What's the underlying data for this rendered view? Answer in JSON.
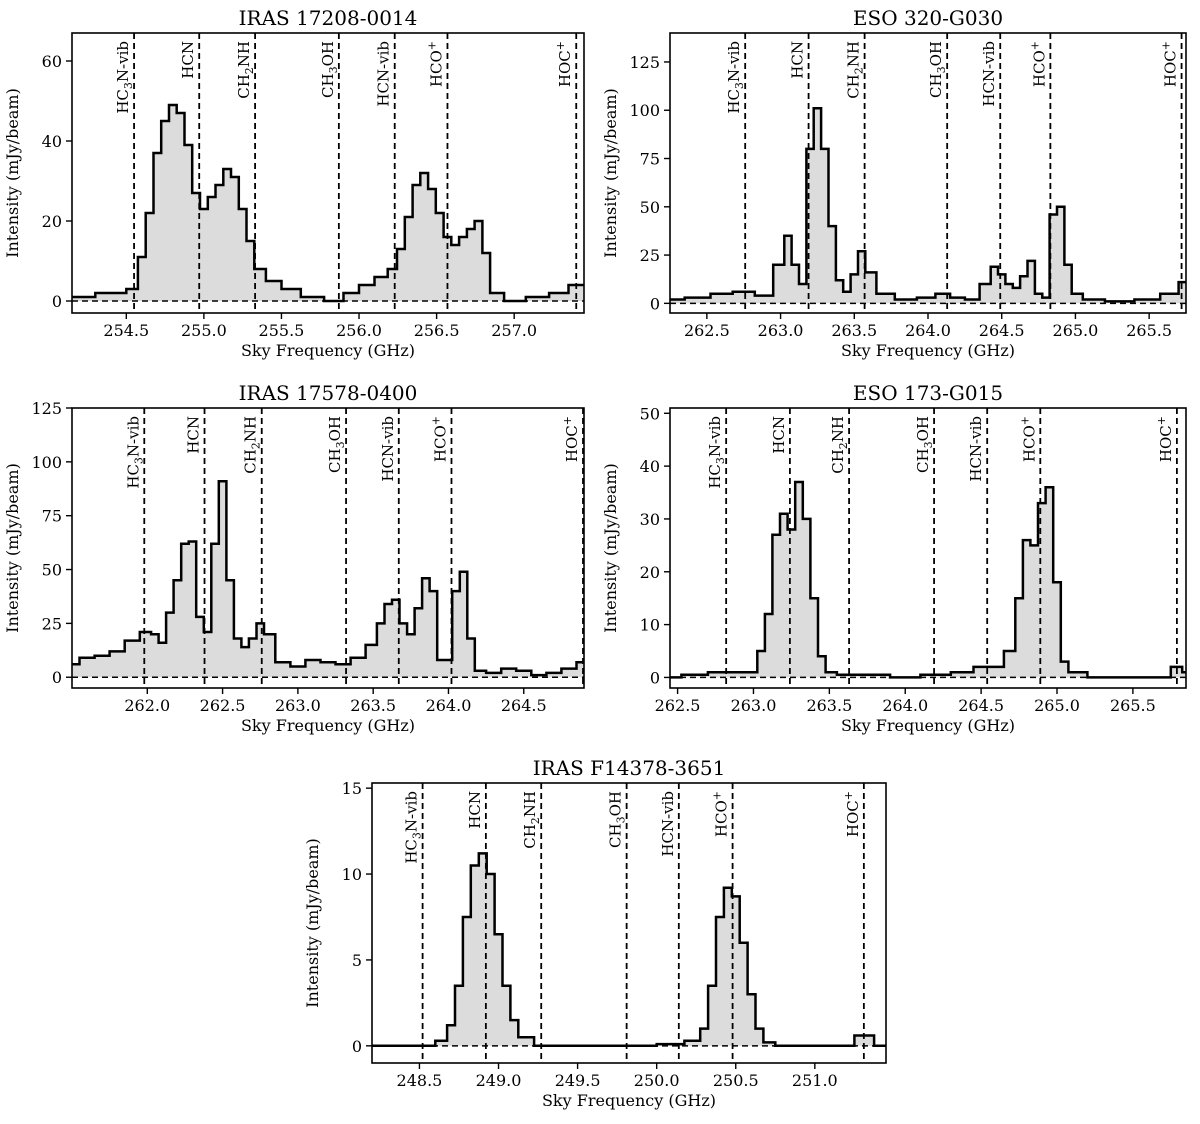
{
  "figure": {
    "xlabel": "Sky Frequency (GHz)",
    "ylabel": "Intensity (mJy/beam)",
    "line_names": [
      "HC3N-vib",
      "HCN",
      "CH2NH",
      "CH3OH",
      "HCN-vib",
      "HCO+",
      "HOC+"
    ]
  },
  "chart_data": [
    {
      "type": "line",
      "title": "IRAS 17208-0014",
      "xlabel": "Sky Frequency (GHz)",
      "ylabel": "Intensity (mJy/beam)",
      "xlim": [
        254.15,
        257.45
      ],
      "ylim": [
        -3,
        67
      ],
      "xticks": [
        254.5,
        255.0,
        255.5,
        256.0,
        256.5,
        257.0
      ],
      "yticks": [
        0,
        20,
        40,
        60
      ],
      "lines": [
        {
          "name": "HC3N-vib",
          "freq": 254.55
        },
        {
          "name": "HCN",
          "freq": 254.97
        },
        {
          "name": "CH2NH",
          "freq": 255.33
        },
        {
          "name": "CH3OH",
          "freq": 255.87
        },
        {
          "name": "HCN-vib",
          "freq": 256.23
        },
        {
          "name": "HCO+",
          "freq": 256.57
        },
        {
          "name": "HOC+",
          "freq": 257.4
        }
      ],
      "x": [
        254.15,
        254.25,
        254.35,
        254.45,
        254.55,
        254.6,
        254.65,
        254.7,
        254.75,
        254.8,
        254.85,
        254.9,
        254.95,
        255.0,
        255.05,
        255.1,
        255.15,
        255.2,
        255.25,
        255.3,
        255.35,
        255.45,
        255.55,
        255.7,
        255.85,
        255.95,
        256.05,
        256.15,
        256.22,
        256.27,
        256.32,
        256.37,
        256.42,
        256.47,
        256.52,
        256.57,
        256.62,
        256.67,
        256.72,
        256.77,
        256.82,
        256.87,
        257.0,
        257.15,
        257.3,
        257.4,
        257.45
      ],
      "y": [
        1,
        1,
        2,
        2,
        3,
        11,
        22,
        37,
        45,
        49,
        47,
        39,
        27,
        23,
        26,
        29,
        33,
        31,
        23,
        15,
        8,
        5,
        3,
        1,
        0,
        2,
        4,
        6,
        8,
        13,
        21,
        29,
        32,
        28,
        22,
        16,
        14,
        16,
        18,
        20,
        12,
        2,
        0,
        1,
        2,
        4,
        4
      ]
    },
    {
      "type": "line",
      "title": "ESO 320-G030",
      "xlabel": "Sky Frequency (GHz)",
      "ylabel": "Intensity (mJy/beam)",
      "xlim": [
        262.25,
        265.75
      ],
      "ylim": [
        -5,
        140
      ],
      "xticks": [
        262.5,
        263.0,
        263.5,
        264.0,
        264.5,
        265.0,
        265.5
      ],
      "yticks": [
        0,
        25,
        50,
        75,
        100,
        125
      ],
      "lines": [
        {
          "name": "HC3N-vib",
          "freq": 262.76
        },
        {
          "name": "HCN",
          "freq": 263.19
        },
        {
          "name": "CH2NH",
          "freq": 263.57
        },
        {
          "name": "CH3OH",
          "freq": 264.13
        },
        {
          "name": "HCN-vib",
          "freq": 264.49
        },
        {
          "name": "HCO+",
          "freq": 264.83
        },
        {
          "name": "HOC+",
          "freq": 265.72
        }
      ],
      "x": [
        262.25,
        262.45,
        262.6,
        262.75,
        262.9,
        263.0,
        263.05,
        263.1,
        263.15,
        263.2,
        263.25,
        263.3,
        263.35,
        263.4,
        263.45,
        263.5,
        263.55,
        263.6,
        263.7,
        263.85,
        264.0,
        264.1,
        264.2,
        264.3,
        264.4,
        264.45,
        264.5,
        264.55,
        264.6,
        264.65,
        264.7,
        264.75,
        264.8,
        264.85,
        264.9,
        264.95,
        265.0,
        265.1,
        265.3,
        265.5,
        265.65,
        265.75
      ],
      "y": [
        2,
        3,
        5,
        6,
        4,
        20,
        35,
        20,
        10,
        80,
        101,
        80,
        40,
        12,
        6,
        15,
        27,
        16,
        5,
        2,
        3,
        5,
        3,
        2,
        10,
        19,
        15,
        10,
        8,
        14,
        22,
        5,
        3,
        46,
        50,
        20,
        5,
        2,
        1,
        2,
        5,
        11
      ]
    },
    {
      "type": "line",
      "title": "IRAS 17578-0400",
      "xlabel": "Sky Frequency (GHz)",
      "ylabel": "Intensity (mJy/beam)",
      "xlim": [
        261.5,
        264.9
      ],
      "ylim": [
        -5,
        125
      ],
      "xticks": [
        262.0,
        262.5,
        263.0,
        263.5,
        264.0,
        264.5
      ],
      "yticks": [
        0,
        25,
        50,
        75,
        100,
        125
      ],
      "lines": [
        {
          "name": "HC3N-vib",
          "freq": 261.98
        },
        {
          "name": "HCN",
          "freq": 262.38
        },
        {
          "name": "CH2NH",
          "freq": 262.76
        },
        {
          "name": "CH3OH",
          "freq": 263.32
        },
        {
          "name": "HCN-vib",
          "freq": 263.67
        },
        {
          "name": "HCO+",
          "freq": 264.02
        },
        {
          "name": "HOC+",
          "freq": 264.9
        }
      ],
      "x": [
        261.5,
        261.6,
        261.7,
        261.8,
        261.9,
        262.0,
        262.05,
        262.1,
        262.15,
        262.2,
        262.25,
        262.3,
        262.35,
        262.4,
        262.45,
        262.5,
        262.55,
        262.6,
        262.65,
        262.7,
        262.75,
        262.8,
        262.9,
        263.0,
        263.1,
        263.2,
        263.3,
        263.4,
        263.5,
        263.55,
        263.6,
        263.65,
        263.7,
        263.75,
        263.8,
        263.85,
        263.9,
        263.95,
        264.0,
        264.05,
        264.1,
        264.15,
        264.2,
        264.3,
        264.4,
        264.5,
        264.6,
        264.7,
        264.8,
        264.9
      ],
      "y": [
        6,
        9,
        10,
        12,
        17,
        21,
        20,
        16,
        30,
        45,
        62,
        63,
        28,
        21,
        62,
        91,
        45,
        18,
        14,
        18,
        25,
        20,
        7,
        5,
        8,
        7,
        6,
        9,
        15,
        25,
        34,
        36,
        25,
        20,
        32,
        46,
        40,
        8,
        8,
        40,
        49,
        18,
        3,
        2,
        4,
        3,
        1,
        2,
        4,
        7
      ]
    },
    {
      "type": "line",
      "title": "ESO 173-G015",
      "xlabel": "Sky Frequency (GHz)",
      "ylabel": "Intensity (mJy/beam)",
      "xlim": [
        262.45,
        265.85
      ],
      "ylim": [
        -2,
        51
      ],
      "xticks": [
        262.5,
        263.0,
        263.5,
        264.0,
        264.5,
        265.0,
        265.5
      ],
      "yticks": [
        0,
        10,
        20,
        30,
        40,
        50
      ],
      "lines": [
        {
          "name": "HC3N-vib",
          "freq": 262.82
        },
        {
          "name": "HCN",
          "freq": 263.24
        },
        {
          "name": "CH2NH",
          "freq": 263.63
        },
        {
          "name": "CH3OH",
          "freq": 264.19
        },
        {
          "name": "HCN-vib",
          "freq": 264.54
        },
        {
          "name": "HCO+",
          "freq": 264.89
        },
        {
          "name": "HOC+",
          "freq": 265.79
        }
      ],
      "x": [
        262.45,
        262.6,
        262.8,
        263.0,
        263.05,
        263.1,
        263.15,
        263.2,
        263.25,
        263.3,
        263.35,
        263.4,
        263.45,
        263.5,
        263.6,
        263.8,
        264.0,
        264.2,
        264.4,
        264.5,
        264.6,
        264.7,
        264.75,
        264.8,
        264.85,
        264.9,
        264.95,
        265.0,
        265.05,
        265.1,
        265.3,
        265.5,
        265.7,
        265.8,
        265.85
      ],
      "y": [
        0,
        0.5,
        1,
        1,
        5,
        12,
        27,
        31,
        28,
        37,
        30,
        15,
        4,
        1,
        0.5,
        0.5,
        0,
        0.5,
        1,
        2,
        2,
        5,
        15,
        26,
        25,
        33,
        36,
        18,
        3,
        1,
        0,
        0,
        0,
        2,
        1
      ]
    },
    {
      "type": "line",
      "title": "IRAS F14378-3651",
      "xlabel": "Sky Frequency (GHz)",
      "ylabel": "Intensity (mJy/beam)",
      "xlim": [
        248.2,
        251.45
      ],
      "ylim": [
        -1,
        15.3
      ],
      "xticks": [
        248.5,
        249.0,
        249.5,
        250.0,
        250.5,
        251.0
      ],
      "yticks": [
        0,
        5,
        10,
        15
      ],
      "lines": [
        {
          "name": "HC3N-vib",
          "freq": 248.52
        },
        {
          "name": "HCN",
          "freq": 248.92
        },
        {
          "name": "CH2NH",
          "freq": 249.27
        },
        {
          "name": "CH3OH",
          "freq": 249.81
        },
        {
          "name": "HCN-vib",
          "freq": 250.14
        },
        {
          "name": "HCO+",
          "freq": 250.48
        },
        {
          "name": "HOC+",
          "freq": 251.31
        }
      ],
      "x": [
        248.2,
        248.4,
        248.55,
        248.65,
        248.7,
        248.75,
        248.8,
        248.85,
        248.9,
        248.95,
        249.0,
        249.05,
        249.1,
        249.15,
        249.3,
        249.5,
        249.7,
        249.9,
        250.1,
        250.25,
        250.3,
        250.35,
        250.4,
        250.45,
        250.5,
        250.55,
        250.6,
        250.65,
        250.7,
        250.8,
        251.0,
        251.2,
        251.3,
        251.45
      ],
      "y": [
        0,
        0,
        0,
        0.3,
        1.2,
        3.5,
        7.5,
        10.5,
        11.2,
        10,
        6.5,
        3.5,
        1.5,
        0.5,
        0,
        0,
        0,
        0,
        0.1,
        0.3,
        1,
        3.5,
        7.5,
        9.2,
        8.7,
        6,
        3,
        1,
        0.2,
        0,
        0,
        0,
        0.6,
        0
      ]
    }
  ]
}
